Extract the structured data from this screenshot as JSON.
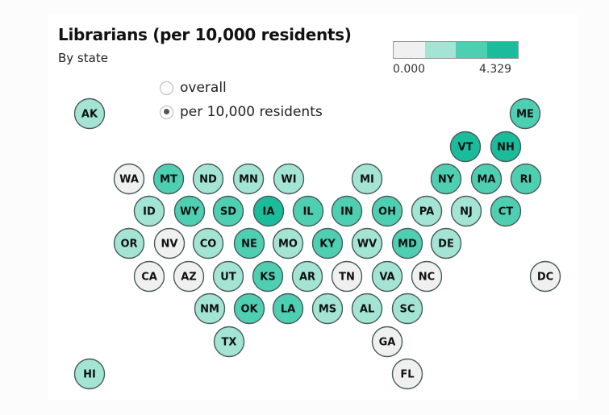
{
  "title": "Librarians (per 10,000 residents)",
  "subtitle": "By state",
  "legend": {
    "min": "0.000",
    "max": "4.329",
    "colors": [
      "#f0f0f0",
      "#a3e4d4",
      "#4fcfb2",
      "#1abc9c"
    ]
  },
  "options": [
    {
      "label": "overall",
      "selected": false
    },
    {
      "label": "per 10,000 residents",
      "selected": true
    }
  ],
  "palette": {
    "low": "#f0f0f0",
    "light": "#a3e4d4",
    "mid": "#4fcfb2",
    "high": "#1abc9c",
    "stroke": "#4a5a5a"
  },
  "states": [
    {
      "abbr": "AK",
      "color": "#a3e4d4"
    },
    {
      "abbr": "ME",
      "color": "#4fcfb2"
    },
    {
      "abbr": "VT",
      "color": "#1abc9c"
    },
    {
      "abbr": "NH",
      "color": "#1abc9c"
    },
    {
      "abbr": "WA",
      "color": "#f0f0f0"
    },
    {
      "abbr": "MT",
      "color": "#4fcfb2"
    },
    {
      "abbr": "ND",
      "color": "#a3e4d4"
    },
    {
      "abbr": "MN",
      "color": "#a3e4d4"
    },
    {
      "abbr": "WI",
      "color": "#a3e4d4"
    },
    {
      "abbr": "MI",
      "color": "#a3e4d4"
    },
    {
      "abbr": "NY",
      "color": "#4fcfb2"
    },
    {
      "abbr": "MA",
      "color": "#4fcfb2"
    },
    {
      "abbr": "RI",
      "color": "#4fcfb2"
    },
    {
      "abbr": "ID",
      "color": "#a3e4d4"
    },
    {
      "abbr": "WY",
      "color": "#4fcfb2"
    },
    {
      "abbr": "SD",
      "color": "#4fcfb2"
    },
    {
      "abbr": "IA",
      "color": "#1abc9c"
    },
    {
      "abbr": "IL",
      "color": "#4fcfb2"
    },
    {
      "abbr": "IN",
      "color": "#4fcfb2"
    },
    {
      "abbr": "OH",
      "color": "#4fcfb2"
    },
    {
      "abbr": "PA",
      "color": "#a3e4d4"
    },
    {
      "abbr": "NJ",
      "color": "#a3e4d4"
    },
    {
      "abbr": "CT",
      "color": "#4fcfb2"
    },
    {
      "abbr": "OR",
      "color": "#a3e4d4"
    },
    {
      "abbr": "NV",
      "color": "#f0f0f0"
    },
    {
      "abbr": "CO",
      "color": "#a3e4d4"
    },
    {
      "abbr": "NE",
      "color": "#4fcfb2"
    },
    {
      "abbr": "MO",
      "color": "#a3e4d4"
    },
    {
      "abbr": "KY",
      "color": "#4fcfb2"
    },
    {
      "abbr": "WV",
      "color": "#a3e4d4"
    },
    {
      "abbr": "MD",
      "color": "#4fcfb2"
    },
    {
      "abbr": "DE",
      "color": "#a3e4d4"
    },
    {
      "abbr": "CA",
      "color": "#f0f0f0"
    },
    {
      "abbr": "AZ",
      "color": "#f0f0f0"
    },
    {
      "abbr": "UT",
      "color": "#a3e4d4"
    },
    {
      "abbr": "KS",
      "color": "#4fcfb2"
    },
    {
      "abbr": "AR",
      "color": "#a3e4d4"
    },
    {
      "abbr": "TN",
      "color": "#f0f0f0"
    },
    {
      "abbr": "VA",
      "color": "#a3e4d4"
    },
    {
      "abbr": "NC",
      "color": "#f0f0f0"
    },
    {
      "abbr": "DC",
      "color": "#f0f0f0"
    },
    {
      "abbr": "NM",
      "color": "#a3e4d4"
    },
    {
      "abbr": "OK",
      "color": "#4fcfb2"
    },
    {
      "abbr": "LA",
      "color": "#4fcfb2"
    },
    {
      "abbr": "MS",
      "color": "#a3e4d4"
    },
    {
      "abbr": "AL",
      "color": "#a3e4d4"
    },
    {
      "abbr": "SC",
      "color": "#a3e4d4"
    },
    {
      "abbr": "TX",
      "color": "#a3e4d4"
    },
    {
      "abbr": "GA",
      "color": "#f0f0f0"
    },
    {
      "abbr": "HI",
      "color": "#a3e4d4"
    },
    {
      "abbr": "FL",
      "color": "#f0f0f0"
    }
  ]
}
